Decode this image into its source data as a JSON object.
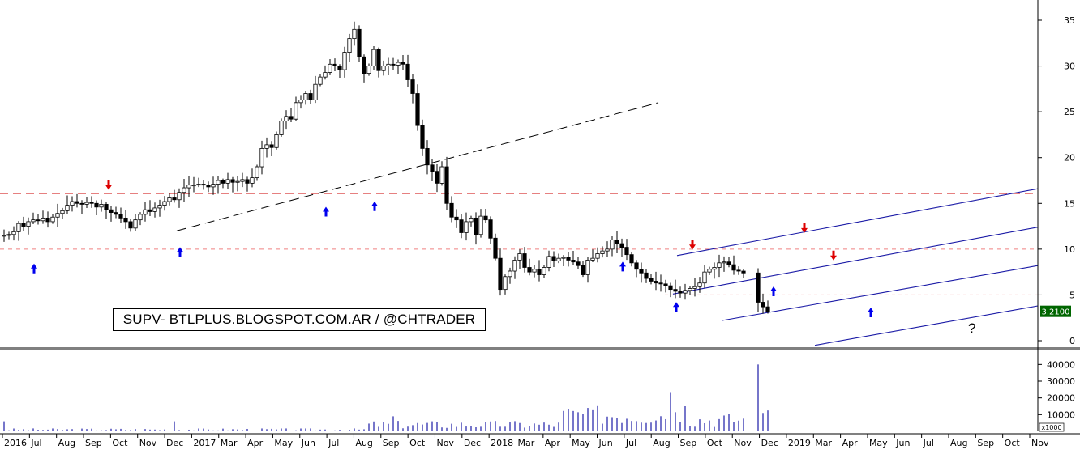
{
  "watermark": "SUPV- BTLPLUS.BLOGSPOT.COM.AR / @CHTRADER",
  "annotation_question": "?",
  "price_label": "3.2100",
  "volume_unit": "x1000",
  "colors": {
    "support_resistance": "#cc0000",
    "channel": "#1a1aa6",
    "arrow_up": "#0000ee",
    "arrow_down": "#dd0000",
    "price_label_bg": "#006600"
  },
  "chart_data": [
    {
      "type": "candlestick",
      "title": "",
      "interval": "weekly",
      "y_axis_side": "right",
      "ylim": [
        0,
        36
      ],
      "y_ticks": [
        0,
        5,
        10,
        15,
        20,
        25,
        30,
        35
      ],
      "x_ticks": [
        "2016",
        "Jul",
        "Aug",
        "Sep",
        "Oct",
        "Nov",
        "Dec",
        "2017",
        "Mar",
        "Apr",
        "May",
        "Jun",
        "Jul",
        "Aug",
        "Sep",
        "Oct",
        "Nov",
        "Dec",
        "2018",
        "Mar",
        "Apr",
        "May",
        "Jun",
        "Jul",
        "Aug",
        "Sep",
        "Oct",
        "Nov",
        "Dec",
        "2019",
        "Mar",
        "Apr",
        "May",
        "Jun",
        "Jul",
        "Aug",
        "Sep",
        "Oct",
        "Nov"
      ],
      "last_close": 3.21,
      "close_series": [
        11.5,
        11.6,
        11.9,
        12.8,
        12.5,
        13.0,
        13.2,
        13.1,
        13.4,
        13.0,
        13.5,
        13.9,
        14.2,
        14.8,
        15.2,
        15.0,
        14.9,
        15.1,
        15.0,
        14.6,
        14.9,
        14.3,
        14.0,
        13.8,
        13.4,
        13.0,
        12.3,
        13.2,
        13.8,
        14.3,
        14.1,
        14.5,
        14.8,
        15.2,
        15.6,
        15.4,
        16.2,
        16.7,
        17.0,
        17.0,
        17.1,
        17.0,
        16.8,
        17.1,
        17.5,
        17.2,
        17.6,
        17.3,
        17.4,
        17.6,
        17.2,
        17.8,
        19.0,
        21.0,
        21.4,
        21.1,
        22.5,
        24.0,
        24.5,
        24.2,
        26.0,
        26.3,
        27.0,
        26.3,
        28.0,
        28.8,
        29.3,
        30.2,
        30.0,
        29.6,
        31.5,
        33.0,
        34.0,
        31.0,
        29.2,
        30.0,
        31.8,
        29.5,
        30.0,
        30.2,
        30.1,
        30.4,
        30.2,
        28.5,
        27.0,
        23.5,
        21.0,
        19.2,
        18.5,
        17.2,
        19.0,
        15.0,
        13.5,
        13.2,
        11.8,
        13.0,
        13.4,
        11.6,
        13.6,
        13.2,
        11.2,
        9.0,
        5.6,
        7.0,
        7.6,
        8.8,
        9.5,
        8.0,
        7.5,
        7.8,
        7.2,
        8.0,
        9.2,
        8.7,
        9.0,
        9.1,
        8.8,
        8.6,
        8.2,
        7.2,
        8.8,
        9.0,
        9.5,
        9.8,
        10.0,
        11.0,
        10.6,
        10.2,
        9.4,
        8.5,
        7.8,
        7.4,
        6.8,
        6.5,
        6.3,
        6.2,
        6.0,
        5.6,
        5.4,
        5.2,
        5.5,
        5.7,
        5.9,
        6.3,
        7.5,
        7.8,
        8.0,
        8.5,
        8.6,
        8.3,
        7.7,
        7.6,
        7.4,
        null,
        null,
        4.2,
        3.7,
        3.21
      ],
      "support_resistance": [
        16.1,
        10.0,
        5.0
      ],
      "volume": {
        "ylim": [
          0,
          45000
        ],
        "y_ticks": [
          10000,
          20000,
          30000,
          40000
        ],
        "unit": "x1000",
        "max_spike": 40000
      },
      "signals_up": 10,
      "signals_down": 5
    }
  ]
}
